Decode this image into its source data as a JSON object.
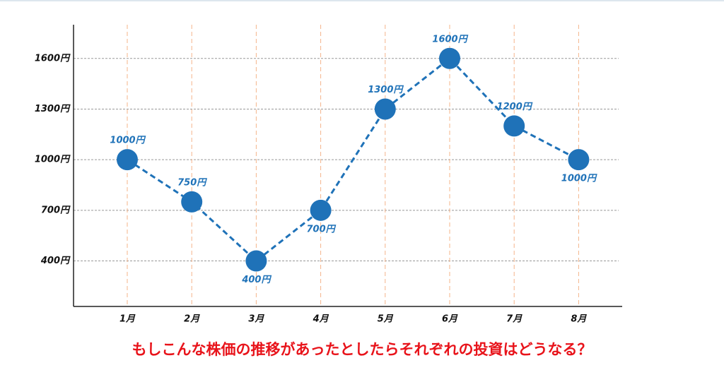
{
  "chart_data": {
    "type": "line",
    "categories": [
      "1月",
      "2月",
      "3月",
      "4月",
      "5月",
      "6月",
      "7月",
      "8月"
    ],
    "values": [
      1000,
      750,
      400,
      700,
      1300,
      1600,
      1200,
      1000
    ],
    "value_labels": [
      "1000円",
      "750円",
      "400円",
      "700円",
      "1300円",
      "1600円",
      "1200円",
      "1000円"
    ],
    "color": "#1f72b8",
    "ylim": [
      130,
      1800
    ],
    "yticks": [
      {
        "value": 400,
        "label": "400円"
      },
      {
        "value": 700,
        "label": "700円"
      },
      {
        "value": 1000,
        "label": "1000円"
      },
      {
        "value": 1300,
        "label": "1300円"
      },
      {
        "value": 1600,
        "label": "1600円"
      }
    ],
    "grid": true,
    "caption": "もしこんな株価の推移があったとしたらそれぞれの投資はどうなる？"
  }
}
